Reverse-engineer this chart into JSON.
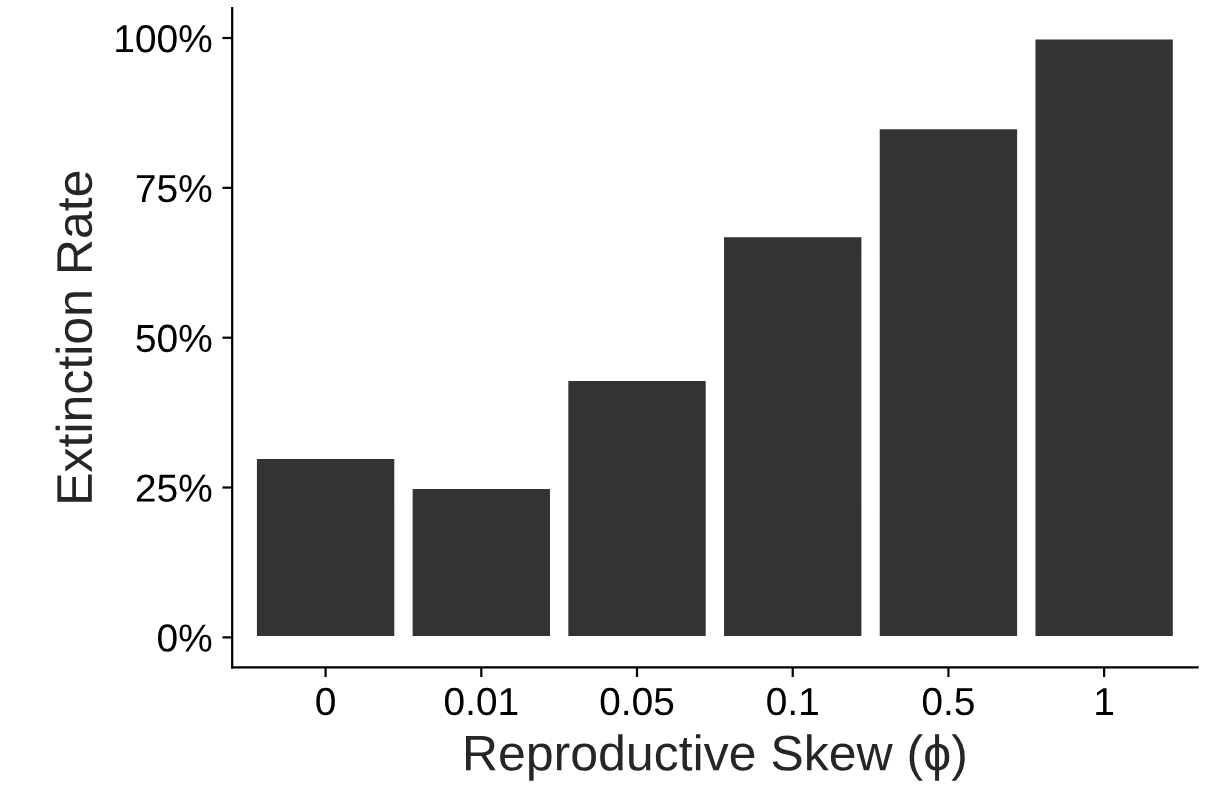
{
  "chart_data": {
    "type": "bar",
    "xlabel": "Reproductive Skew (ϕ)",
    "ylabel": "Extinction Rate",
    "categories": [
      "0",
      "0.01",
      "0.05",
      "0.1",
      "0.5",
      "1"
    ],
    "values": [
      30,
      25,
      43,
      67,
      85,
      100
    ],
    "color": "#333333",
    "ylim": [
      -5,
      105
    ],
    "yticks": [
      {
        "value": 0,
        "label": "0%"
      },
      {
        "value": 25,
        "label": "25%"
      },
      {
        "value": 50,
        "label": "50%"
      },
      {
        "value": 75,
        "label": "75%"
      },
      {
        "value": 100,
        "label": "100%"
      }
    ],
    "grid": false
  }
}
